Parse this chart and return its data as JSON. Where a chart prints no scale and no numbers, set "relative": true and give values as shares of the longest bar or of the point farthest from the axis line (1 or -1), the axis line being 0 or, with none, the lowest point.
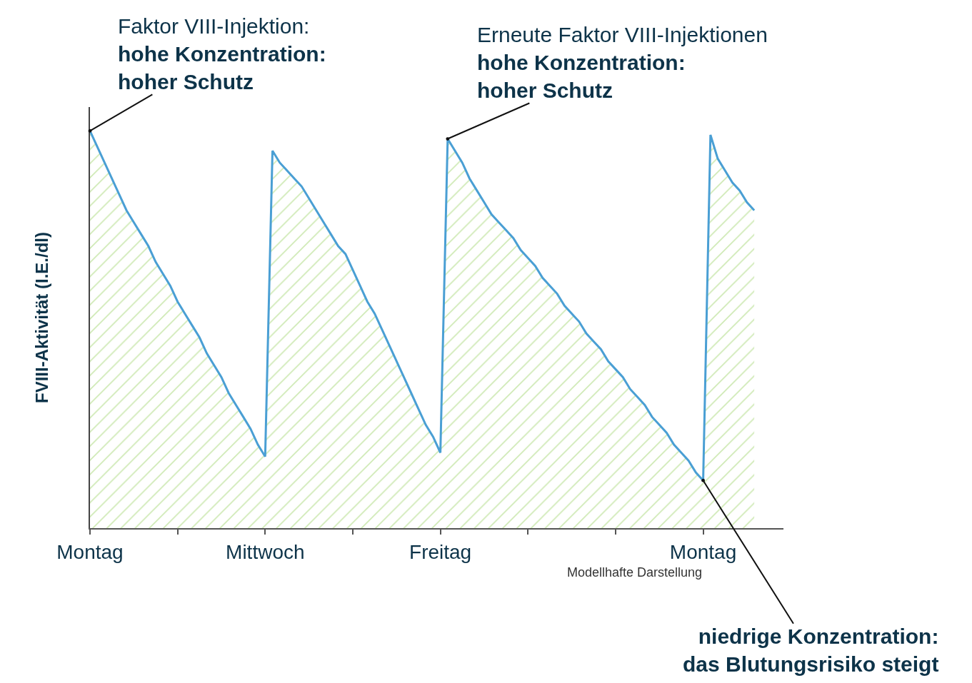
{
  "chart_data": {
    "type": "area",
    "relative": true,
    "ylabel": "FVIII-Aktivität (I.E./dl)",
    "categories": [
      "Montag",
      null,
      null,
      null,
      null,
      null,
      null,
      null,
      null,
      null,
      null,
      null,
      null,
      null,
      null,
      null,
      null,
      null,
      null,
      null,
      null,
      null,
      null,
      null,
      "Mittwoch",
      null,
      null,
      null,
      null,
      null,
      null,
      null,
      null,
      null,
      null,
      null,
      null,
      null,
      null,
      null,
      null,
      null,
      null,
      null,
      null,
      null,
      null,
      null,
      "Freitag",
      null,
      null,
      null,
      null,
      null,
      null,
      null,
      null,
      null,
      null,
      null,
      null,
      null,
      null,
      null,
      null,
      null,
      null,
      null,
      null,
      null,
      null,
      null,
      null,
      null,
      null,
      null,
      null,
      null,
      null,
      null,
      null,
      null,
      null,
      null,
      "Montag",
      null,
      null,
      null,
      null,
      null,
      null,
      null
    ],
    "series": [
      {
        "color": "#4a9fd4",
        "values": [
          1.0,
          0.96,
          0.92,
          0.88,
          0.84,
          0.8,
          0.77,
          0.74,
          0.71,
          0.67,
          0.64,
          0.61,
          0.57,
          0.54,
          0.51,
          0.48,
          0.44,
          0.41,
          0.38,
          0.34,
          0.31,
          0.28,
          0.25,
          0.21,
          0.18,
          0.95,
          0.92,
          0.9,
          0.88,
          0.86,
          0.83,
          0.8,
          0.77,
          0.74,
          0.71,
          0.69,
          0.65,
          0.61,
          0.57,
          0.54,
          0.5,
          0.46,
          0.42,
          0.38,
          0.34,
          0.3,
          0.26,
          0.23,
          0.19,
          0.98,
          0.95,
          0.92,
          0.88,
          0.85,
          0.82,
          0.79,
          0.77,
          0.75,
          0.73,
          0.7,
          0.68,
          0.66,
          0.63,
          0.61,
          0.59,
          0.56,
          0.54,
          0.52,
          0.49,
          0.47,
          0.45,
          0.42,
          0.4,
          0.38,
          0.35,
          0.33,
          0.31,
          0.28,
          0.26,
          0.24,
          0.21,
          0.19,
          0.17,
          0.14,
          0.12,
          0.99,
          0.93,
          0.9,
          0.87,
          0.85,
          0.82,
          0.8
        ]
      }
    ],
    "annotations": [
      "Faktor VIII-Injektion:\nhohe Konzentration:\nhoher Schutz",
      "Erneute Faktor VIII-Injektionen\nhohe Konzentration:\nhoher Schutz",
      "niedrige Konzentration:\ndas Blutungsrisiko steigt",
      "Modellhafte Darstellung"
    ],
    "tick_labels": "x"
  }
}
